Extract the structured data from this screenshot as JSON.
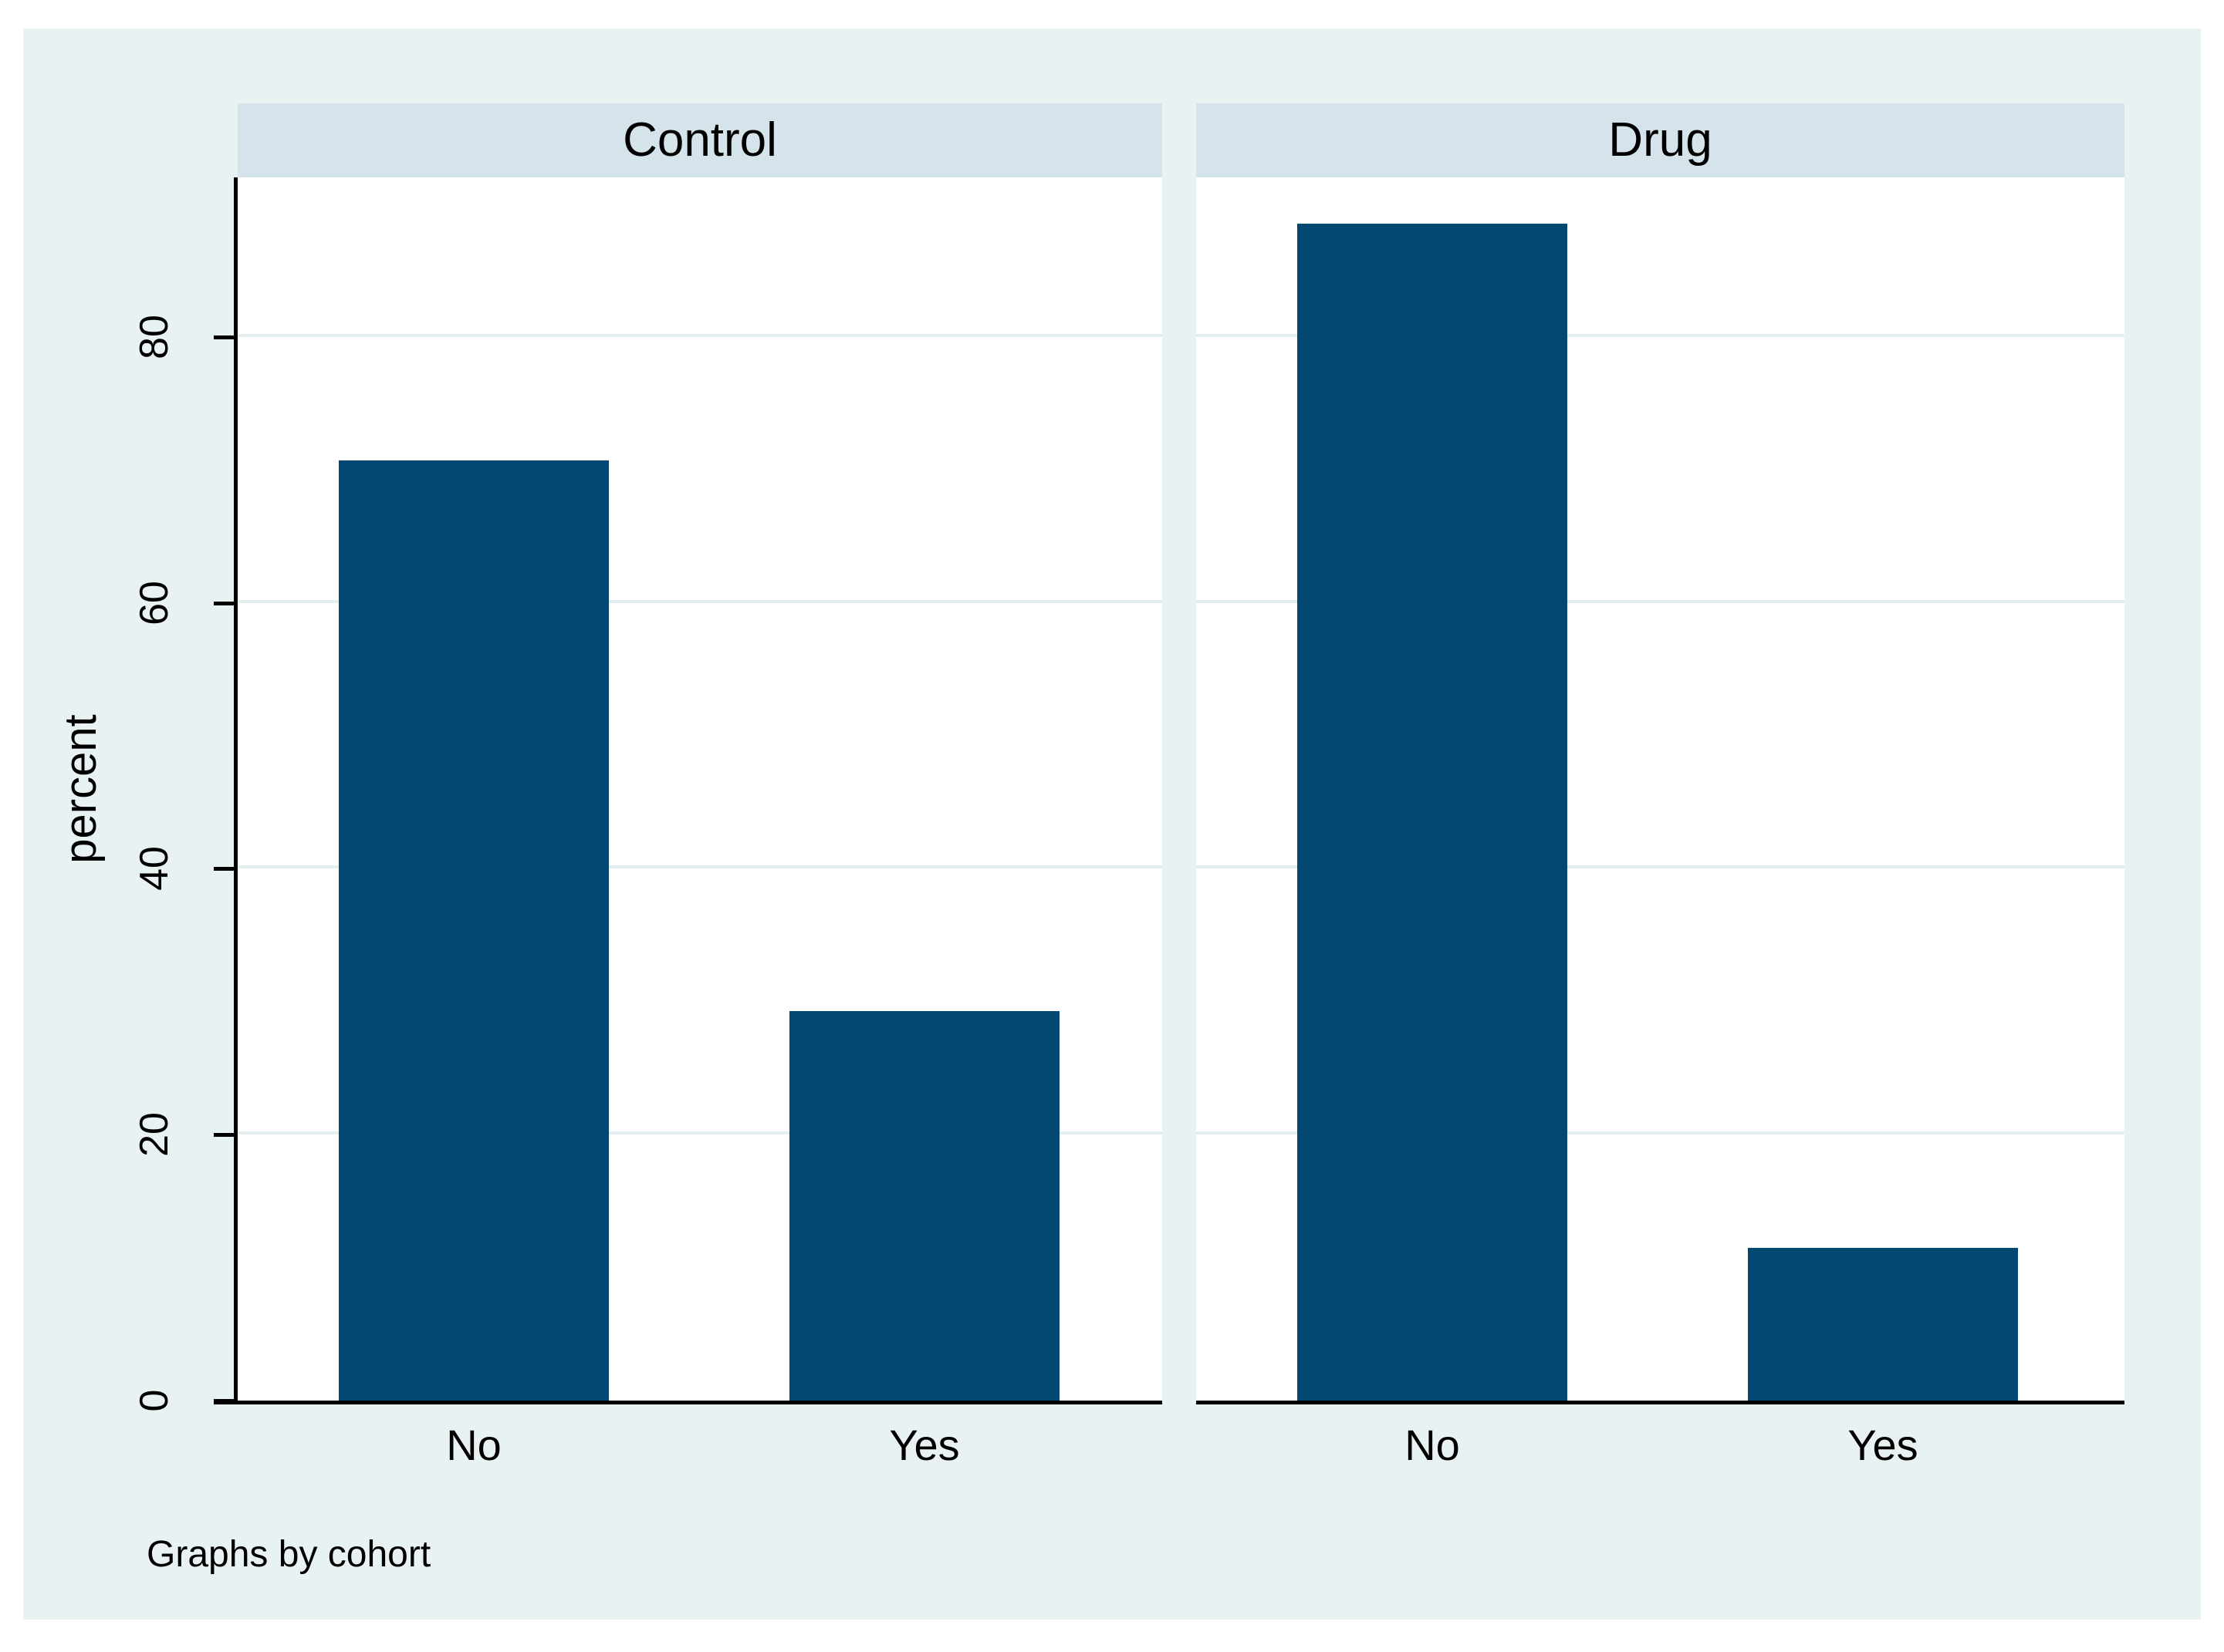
{
  "chart_data": {
    "type": "bar",
    "title": "",
    "by": "cohort",
    "categories": [
      "No",
      "Yes"
    ],
    "series": [
      {
        "name": "Control",
        "values": [
          70.7,
          29.3
        ]
      },
      {
        "name": "Drug",
        "values": [
          88.5,
          11.5
        ]
      }
    ],
    "xlabel": "",
    "ylabel": "percent",
    "yticks": [
      0,
      20,
      40,
      60,
      80
    ],
    "ylim": [
      0,
      92
    ],
    "grid": true,
    "legend_position": "none",
    "note": "Graphs by cohort"
  },
  "colors": {
    "bar": "#024872",
    "figure_bg": "#e9f2f3",
    "panel_header_bg": "#d5e3eb",
    "plot_bg": "#ffffff",
    "gridline": "#e3eef0",
    "axis": "#000000"
  }
}
